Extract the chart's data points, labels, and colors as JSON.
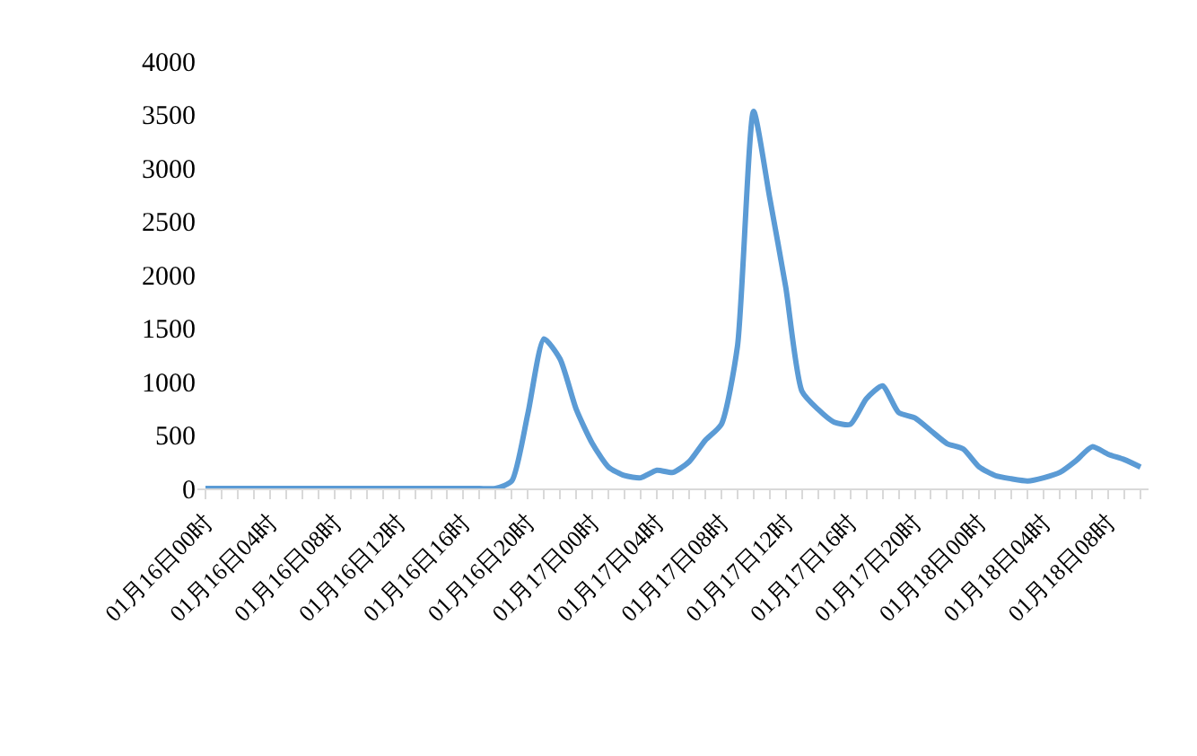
{
  "chart_data": {
    "type": "line",
    "categories": [
      "01月16日00时",
      null,
      null,
      null,
      "01月16日04时",
      null,
      null,
      null,
      "01月16日08时",
      null,
      null,
      null,
      "01月16日12时",
      null,
      null,
      null,
      "01月16日16时",
      null,
      null,
      null,
      "01月16日20时",
      null,
      null,
      null,
      "01月17日00时",
      null,
      null,
      null,
      "01月17日04时",
      null,
      null,
      null,
      "01月17日08时",
      null,
      null,
      null,
      "01月17日12时",
      null,
      null,
      null,
      "01月17日16时",
      null,
      null,
      null,
      "01月17日20时",
      null,
      null,
      null,
      "01月18日00时",
      null,
      null,
      null,
      "01月18日04时",
      null,
      null,
      null,
      "01月18日08时",
      null,
      null
    ],
    "series": [
      {
        "color": "#5b9bd5",
        "values": [
          0,
          0,
          0,
          0,
          0,
          0,
          0,
          0,
          0,
          0,
          0,
          0,
          0,
          0,
          0,
          0,
          0,
          0,
          0,
          70,
          700,
          1400,
          1210,
          740,
          420,
          200,
          120,
          100,
          170,
          150,
          250,
          450,
          600,
          1330,
          3530,
          2720,
          1880,
          910,
          740,
          620,
          600,
          840,
          960,
          710,
          660,
          540,
          420,
          370,
          200,
          120,
          90,
          70,
          100,
          150,
          260,
          390,
          320,
          270,
          200
        ]
      }
    ],
    "ylim": [
      0,
      4000
    ],
    "yticks": [
      0,
      500,
      1000,
      1500,
      2000,
      2500,
      3000,
      3500,
      4000
    ],
    "grid": false,
    "marker": "none",
    "line_style": "solid"
  }
}
